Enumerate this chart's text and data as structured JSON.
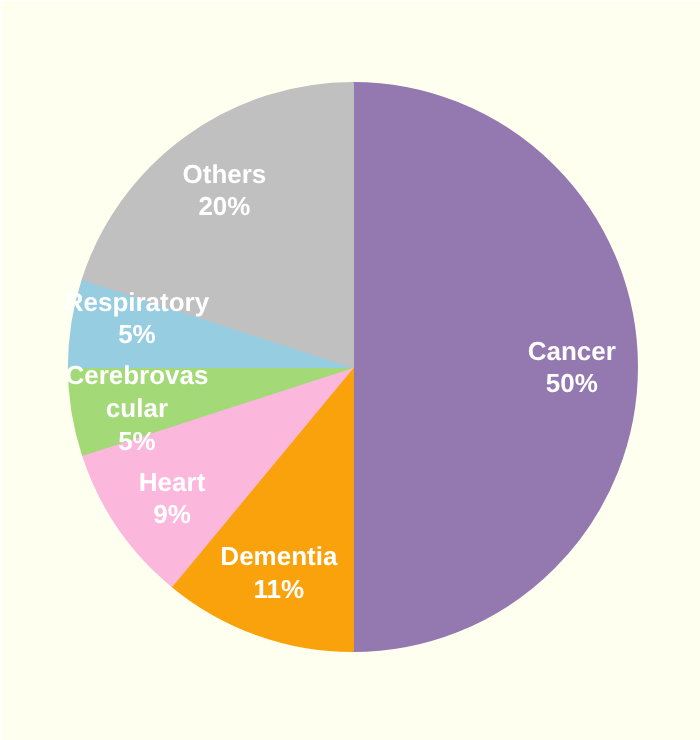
{
  "chart_data": {
    "type": "pie",
    "categories": [
      "Cancer",
      "Dementia",
      "Heart",
      "Cerebrovascular",
      "Respiratory",
      "Others"
    ],
    "values": [
      50,
      11,
      9,
      5,
      5,
      20
    ],
    "value_labels": [
      "50%",
      "11%",
      "9%",
      "5%",
      "5%",
      "20%"
    ],
    "colors": [
      "#9479b0",
      "#f9a20b",
      "#fbb8dc",
      "#a3d977",
      "#97cde0",
      "#c0c0c0"
    ]
  }
}
